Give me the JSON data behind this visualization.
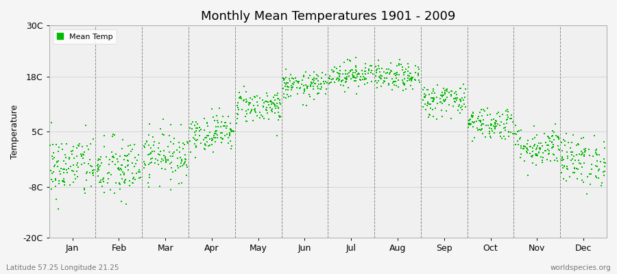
{
  "title": "Monthly Mean Temperatures 1901 - 2009",
  "ylabel": "Temperature",
  "subtitle": "Latitude 57.25 Longitude 21.25",
  "watermark": "worldspecies.org",
  "yticks": [
    -20,
    -8,
    5,
    18,
    30
  ],
  "ytick_labels": [
    "-20C",
    "-8C",
    "5C",
    "18C",
    "30C"
  ],
  "ylim": [
    -20,
    30
  ],
  "months": [
    "Jan",
    "Feb",
    "Mar",
    "Apr",
    "May",
    "Jun",
    "Jul",
    "Aug",
    "Sep",
    "Oct",
    "Nov",
    "Dec"
  ],
  "dot_color": "#00bb00",
  "bg_color": "#f5f5f5",
  "plot_bg_color": "#f0f0f0",
  "legend_label": "Mean Temp",
  "years": 109,
  "monthly_means": [
    -3.2,
    -4.0,
    -0.5,
    4.8,
    11.0,
    15.8,
    18.5,
    17.8,
    12.5,
    7.0,
    1.5,
    -1.8
  ],
  "monthly_stds": [
    3.8,
    3.8,
    3.0,
    2.2,
    2.0,
    1.6,
    1.6,
    1.6,
    2.0,
    2.0,
    2.4,
    3.0
  ],
  "seed": 42,
  "marker_size": 3,
  "figsize": [
    9.0,
    4.0
  ],
  "dpi": 100
}
